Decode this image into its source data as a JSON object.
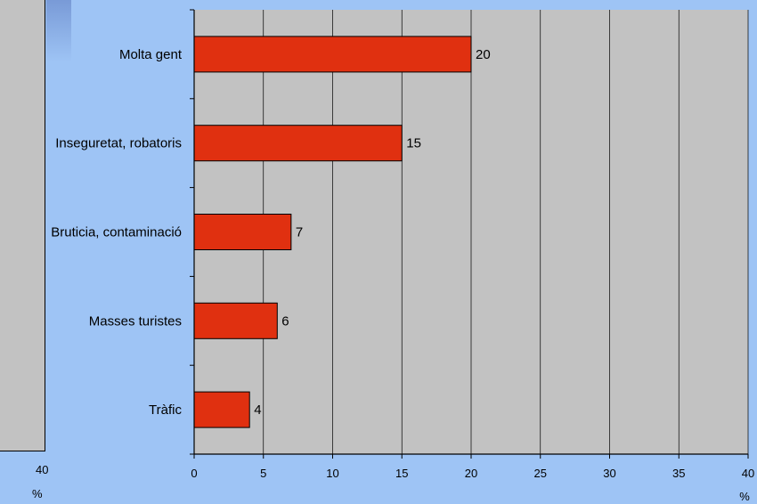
{
  "left_fragment": {
    "tick_label": "40",
    "unit_label": "%"
  },
  "chart_data": {
    "type": "bar",
    "orientation": "horizontal",
    "categories": [
      "Molta gent",
      "Inseguretat, robatoris",
      "Bruticia, contaminació",
      "Masses turistes",
      "Tràfic"
    ],
    "values": [
      20,
      15,
      7,
      6,
      4
    ],
    "xlim": [
      0,
      40
    ],
    "xticks": [
      0,
      5,
      10,
      15,
      20,
      25,
      30,
      35,
      40
    ],
    "xlabel": "%",
    "grid": "vertical",
    "bar_color": "#e03010",
    "plot_bg": "#c2c2c2",
    "page_bg": "#9ec4f5",
    "data_labels": true
  }
}
